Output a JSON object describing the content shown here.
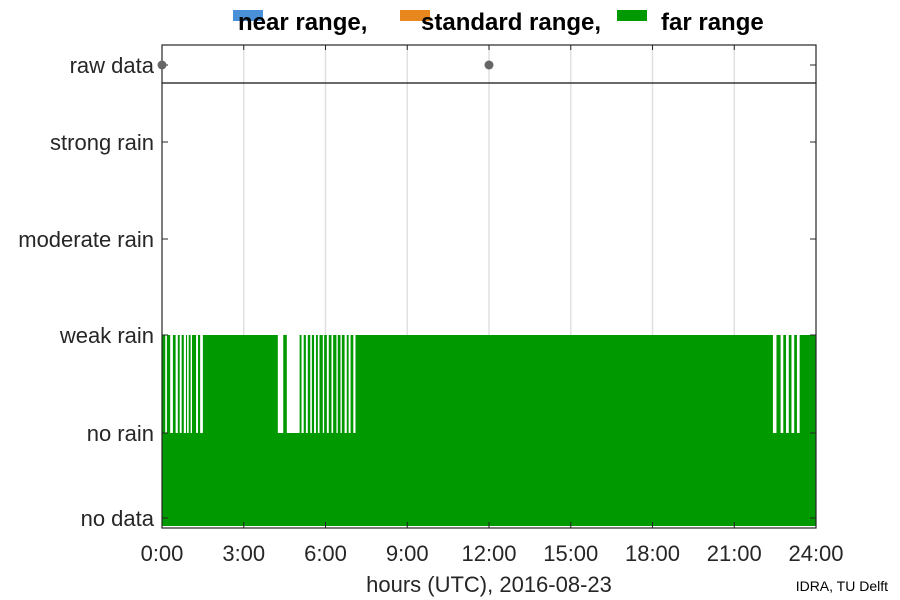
{
  "chart_data": {
    "type": "area",
    "legend": {
      "placement": "top",
      "entries": [
        {
          "label": "near range,",
          "color": "#4A90D9"
        },
        {
          "label": "standard range,",
          "color": "#E8871E"
        },
        {
          "label": "far range",
          "color": "#009900"
        }
      ]
    },
    "xlabel": "hours (UTC), 2016-08-23",
    "x_ticks": [
      "0:00",
      "3:00",
      "6:00",
      "9:00",
      "12:00",
      "15:00",
      "18:00",
      "21:00",
      "24:00"
    ],
    "xlim": [
      0,
      24
    ],
    "y_levels": [
      "no data",
      "no rain",
      "weak rain",
      "moderate rain",
      "strong rain"
    ],
    "top_panel": {
      "label": "raw data",
      "points_hours": [
        0,
        12
      ],
      "color": "#666666"
    },
    "grid": "vertical",
    "series": [
      {
        "name": "far range",
        "color": "#009900",
        "baseline_level": "no rain",
        "high_level": "weak rain",
        "weak_rain_intervals_hours": [
          [
            0.0,
            0.12
          ],
          [
            0.18,
            0.3
          ],
          [
            0.4,
            0.5
          ],
          [
            0.58,
            0.65
          ],
          [
            0.72,
            0.8
          ],
          [
            0.88,
            0.92
          ],
          [
            0.98,
            1.05
          ],
          [
            1.1,
            1.25
          ],
          [
            1.32,
            1.4
          ],
          [
            1.5,
            4.25
          ],
          [
            4.45,
            4.58
          ],
          [
            5.05,
            5.12
          ],
          [
            5.2,
            5.28
          ],
          [
            5.35,
            5.44
          ],
          [
            5.5,
            5.58
          ],
          [
            5.65,
            5.72
          ],
          [
            5.78,
            5.9
          ],
          [
            5.95,
            6.05
          ],
          [
            6.12,
            6.22
          ],
          [
            6.28,
            6.4
          ],
          [
            6.45,
            6.55
          ],
          [
            6.6,
            6.7
          ],
          [
            6.78,
            6.85
          ],
          [
            6.92,
            7.02
          ],
          [
            7.1,
            22.42
          ],
          [
            22.55,
            22.7
          ],
          [
            22.8,
            22.9
          ],
          [
            23.0,
            23.1
          ],
          [
            23.2,
            23.3
          ],
          [
            23.4,
            24.0
          ]
        ]
      }
    ]
  },
  "credit": "IDRA, TU Delft"
}
